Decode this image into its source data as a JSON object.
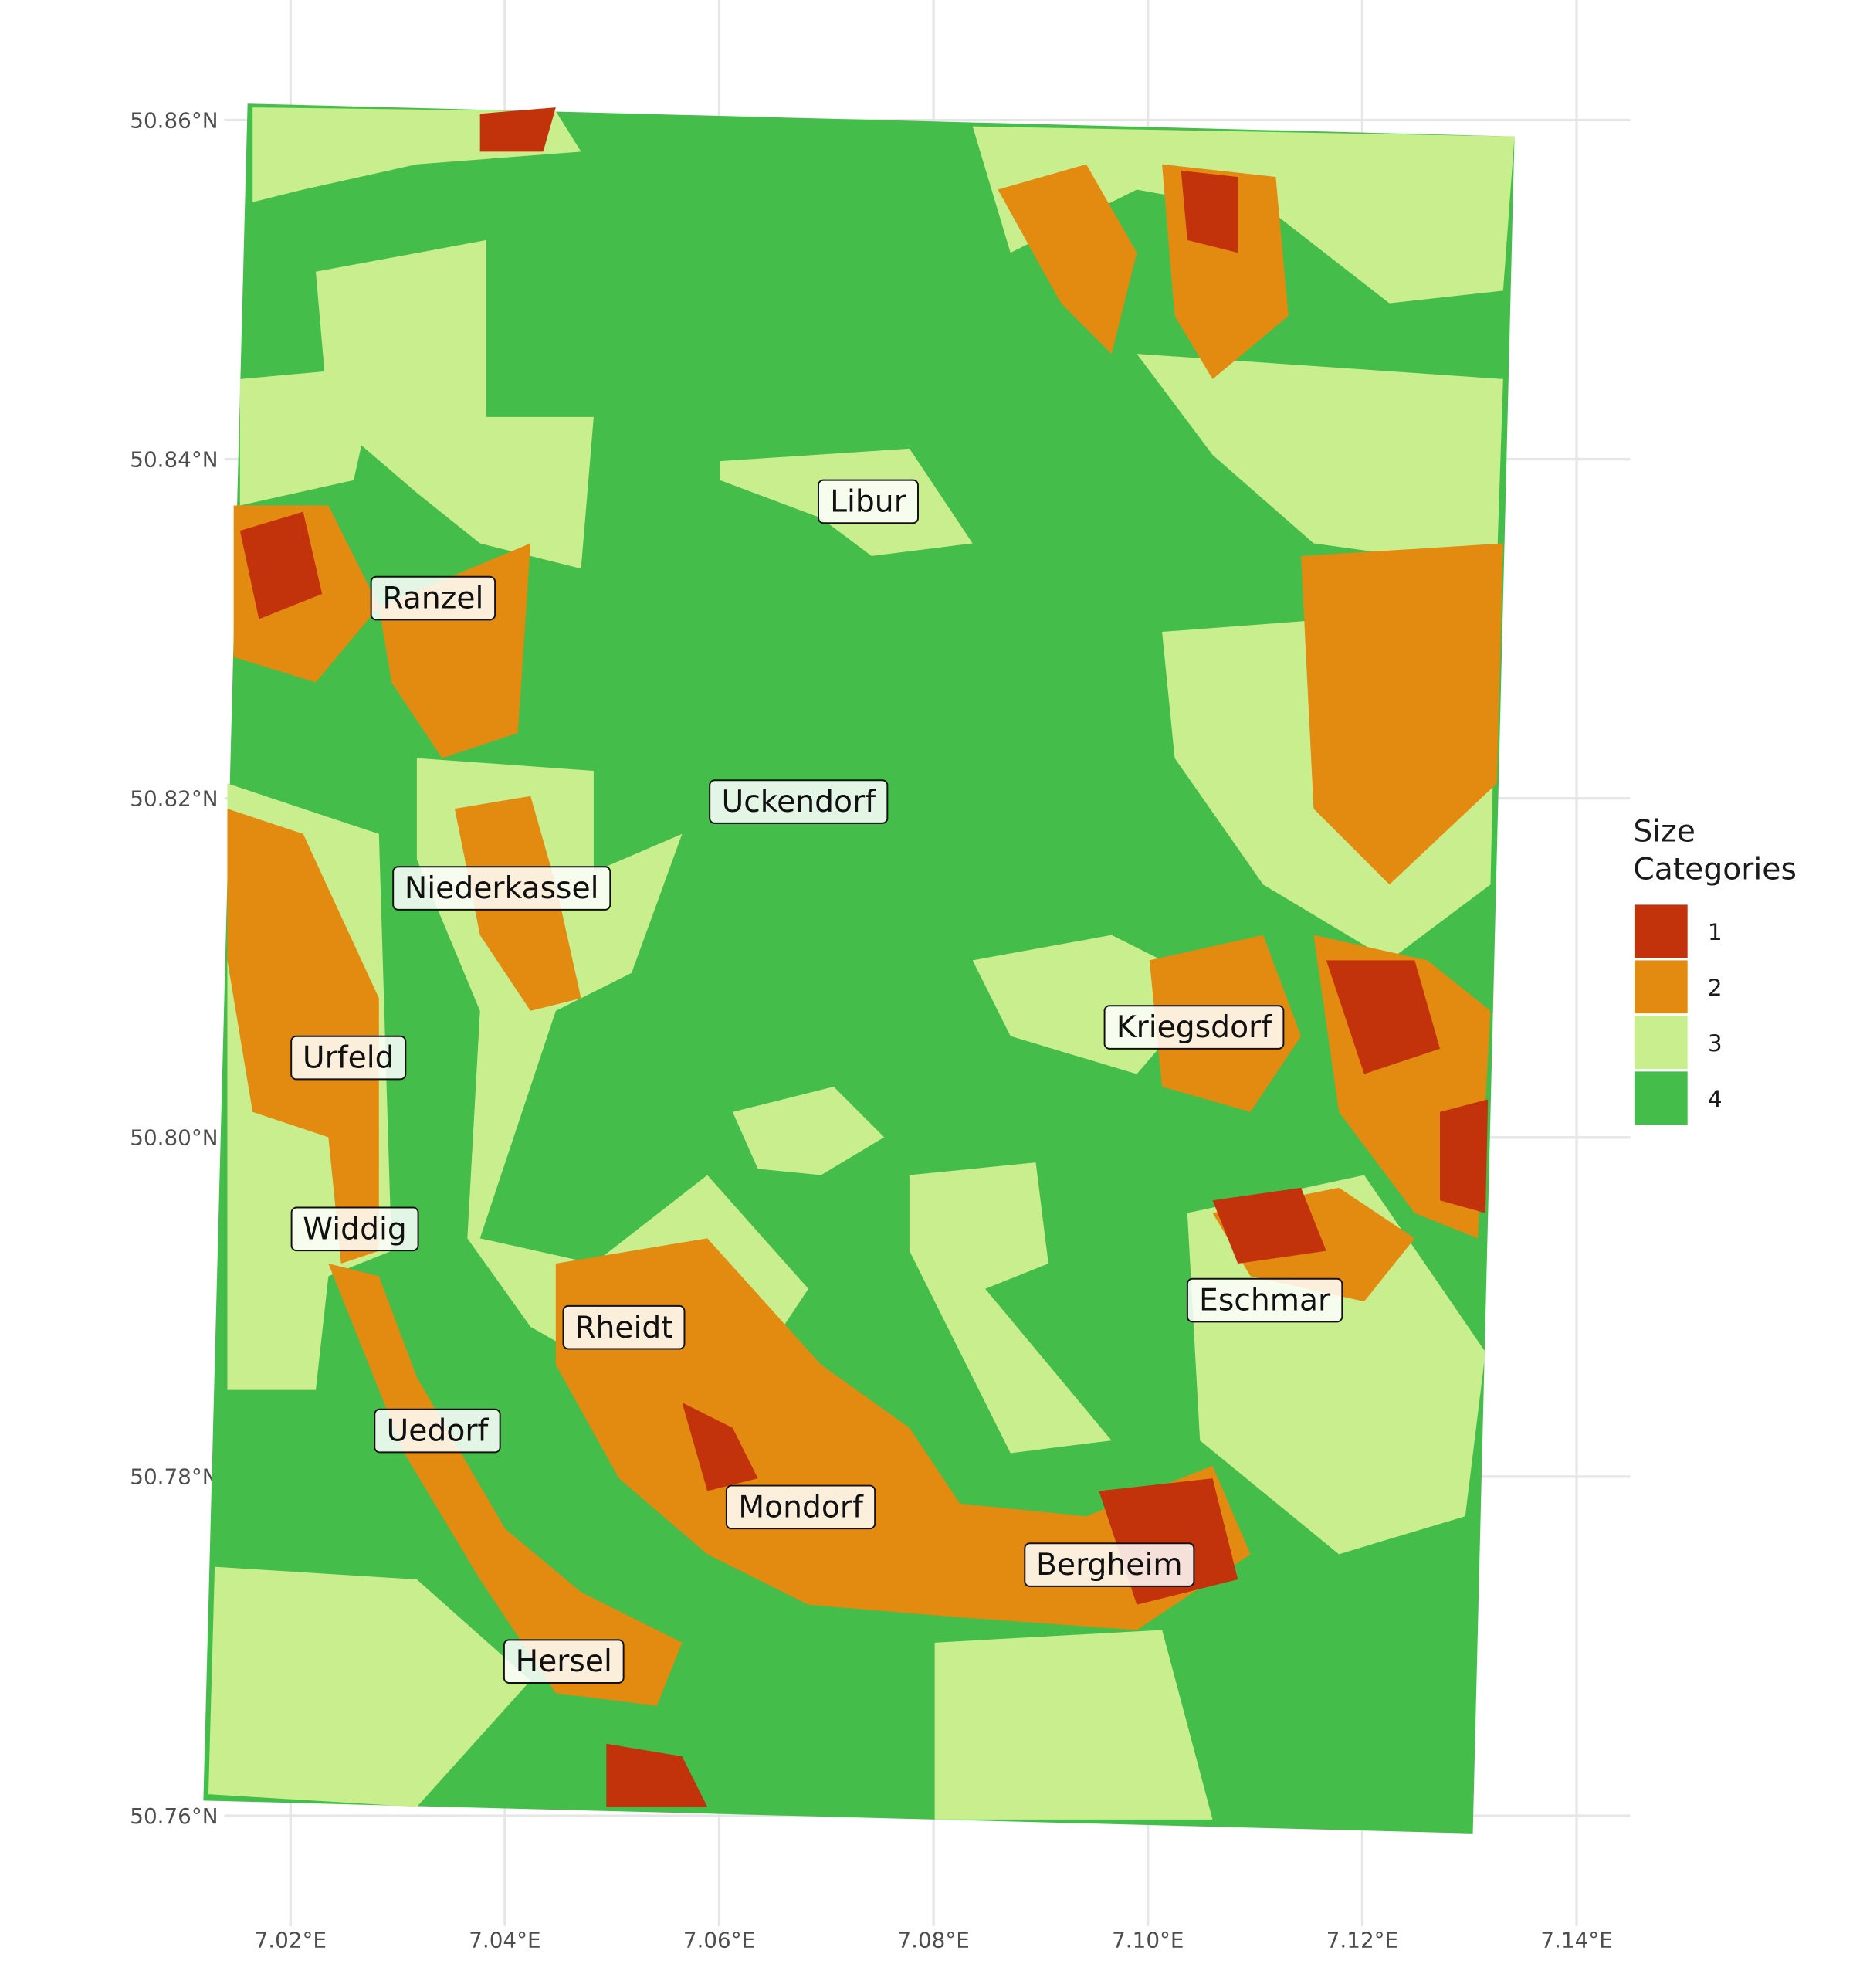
{
  "chart_data": {
    "type": "map",
    "xlim": [
      7.005,
      7.145
    ],
    "ylim": [
      50.752,
      50.869
    ],
    "xticks": [
      {
        "value": 7.02,
        "label": "7.02°E"
      },
      {
        "value": 7.04,
        "label": "7.04°E"
      },
      {
        "value": 7.06,
        "label": "7.06°E"
      },
      {
        "value": 7.08,
        "label": "7.08°E"
      },
      {
        "value": 7.1,
        "label": "7.10°E"
      },
      {
        "value": 7.12,
        "label": "7.12°E"
      },
      {
        "value": 7.14,
        "label": "7.14°E"
      }
    ],
    "yticks": [
      {
        "value": 50.76,
        "label": "50.76°N"
      },
      {
        "value": 50.78,
        "label": "50.78°N"
      },
      {
        "value": 50.8,
        "label": "50.80°N"
      },
      {
        "value": 50.82,
        "label": "50.82°N"
      },
      {
        "value": 50.84,
        "label": "50.84°N"
      },
      {
        "value": 50.86,
        "label": "50.86°N"
      }
    ],
    "grid": true,
    "legend": {
      "title": [
        "Size",
        "Categories"
      ],
      "items": [
        {
          "label": "1",
          "color": "#c2330c"
        },
        {
          "label": "2",
          "color": "#e38a10"
        },
        {
          "label": "3",
          "color": "#c9ee8e"
        },
        {
          "label": "4",
          "color": "#45bd4b"
        }
      ]
    },
    "places": [
      {
        "name": "Libur",
        "lon": 7.0739,
        "lat": 50.8375
      },
      {
        "name": "Ranzel",
        "lon": 7.0333,
        "lat": 50.8318
      },
      {
        "name": "Uckendorf",
        "lon": 7.0674,
        "lat": 50.8198
      },
      {
        "name": "Niederkassel",
        "lon": 7.0397,
        "lat": 50.8147
      },
      {
        "name": "Kriegsdorf",
        "lon": 7.1043,
        "lat": 50.8065
      },
      {
        "name": "Urfeld",
        "lon": 7.0254,
        "lat": 50.8047
      },
      {
        "name": "Widdig",
        "lon": 7.026,
        "lat": 50.7946
      },
      {
        "name": "Eschmar",
        "lon": 7.1109,
        "lat": 50.7904
      },
      {
        "name": "Rheidt",
        "lon": 7.0511,
        "lat": 50.7888
      },
      {
        "name": "Uedorf",
        "lon": 7.0337,
        "lat": 50.7827
      },
      {
        "name": "Mondorf",
        "lon": 7.0676,
        "lat": 50.7782
      },
      {
        "name": "Bergheim",
        "lon": 7.0964,
        "lat": 50.7748
      },
      {
        "name": "Hersel",
        "lon": 7.0455,
        "lat": 50.7691
      }
    ]
  }
}
